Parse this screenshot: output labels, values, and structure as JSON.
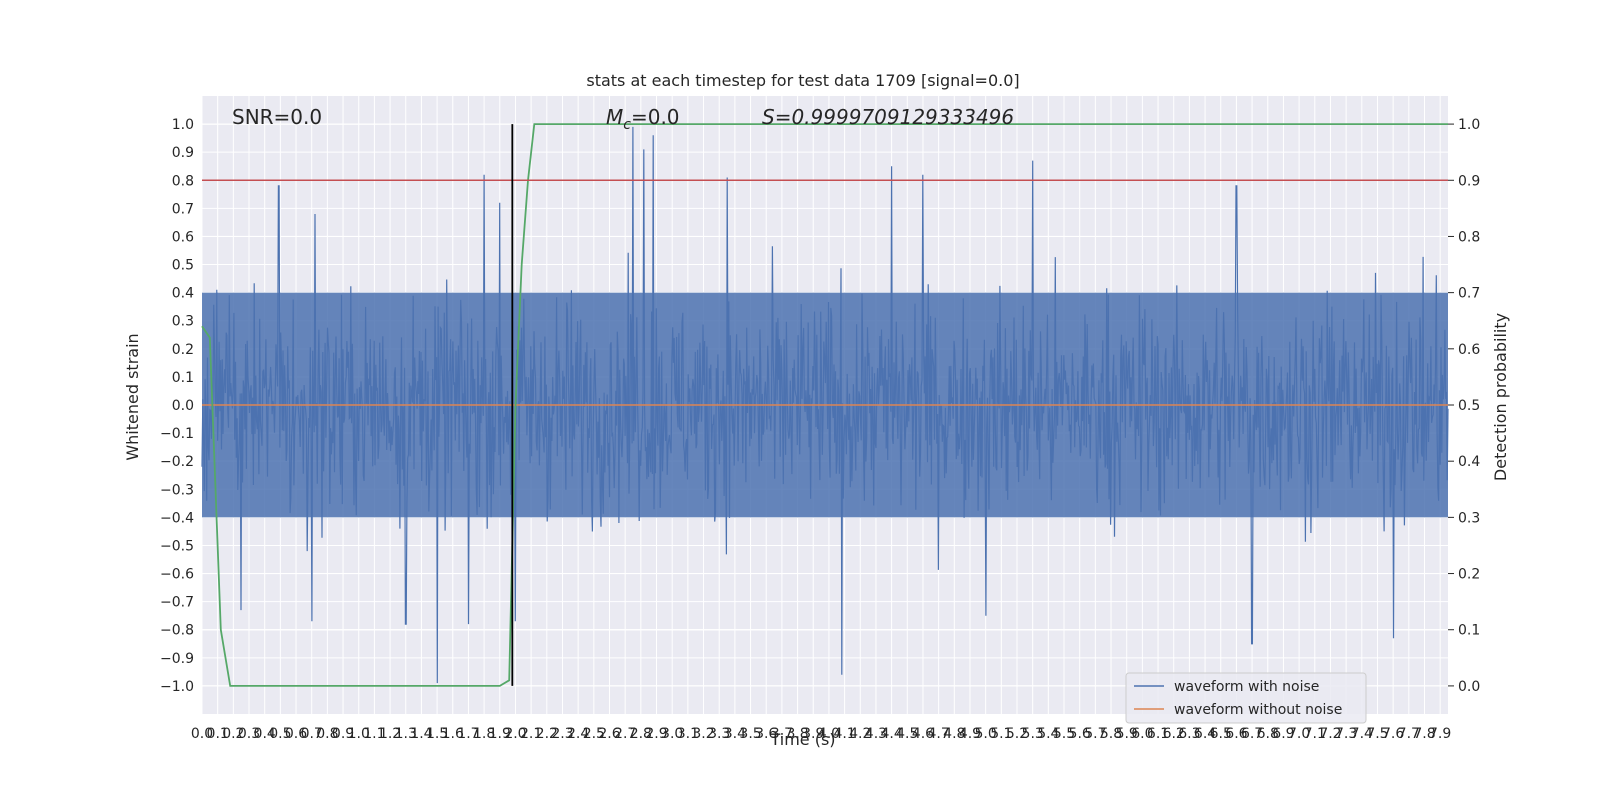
{
  "chart_data": {
    "type": "line",
    "title": "stats at each timestep for test data 1709 [signal=0.0]",
    "xlabel": "Time (s)",
    "ylabel": "Whitened strain",
    "ylabel_right": "Detection probability",
    "xlim": [
      0.0,
      7.95
    ],
    "ylim": [
      -1.1,
      1.1
    ],
    "ylim_right": [
      -0.05,
      1.05
    ],
    "x_ticks": [
      0.0,
      0.1,
      0.2,
      0.3,
      0.4,
      0.5,
      0.6,
      0.7,
      0.8,
      0.9,
      1.0,
      1.1,
      1.2,
      1.3,
      1.4,
      1.5,
      1.6,
      1.7,
      1.8,
      1.9,
      2.0,
      2.1,
      2.2,
      2.3,
      2.4,
      2.5,
      2.6,
      2.7,
      2.8,
      2.9,
      3.0,
      3.1,
      3.2,
      3.3,
      3.4,
      3.5,
      3.6,
      3.7,
      3.8,
      3.9,
      4.0,
      4.1,
      4.2,
      4.3,
      4.4,
      4.5,
      4.6,
      4.7,
      4.8,
      4.9,
      5.0,
      5.1,
      5.2,
      5.3,
      5.4,
      5.5,
      5.6,
      5.7,
      5.8,
      5.9,
      6.0,
      6.1,
      6.2,
      6.3,
      6.4,
      6.5,
      6.6,
      6.7,
      6.8,
      6.9,
      7.0,
      7.1,
      7.2,
      7.3,
      7.4,
      7.5,
      7.6,
      7.7,
      7.8,
      7.9
    ],
    "x_tick_labels": [
      "0.0",
      "0.1",
      "0.2",
      "0.3",
      "0.4",
      "0.5",
      "0.6",
      "0.7",
      "0.8",
      "0.9",
      "1.0",
      "1.1",
      "1.2",
      "1.3",
      "1.4",
      "1.5",
      "1.6",
      "1.7",
      "1.8",
      "1.9",
      "2.0",
      "2.1",
      "2.2",
      "2.3",
      "2.4",
      "2.5",
      "2.6",
      "2.7",
      "2.8",
      "2.9",
      "3.0",
      "3.1",
      "3.2",
      "3.3",
      "3.4",
      "3.5",
      "3.6",
      "3.7",
      "3.8",
      "3.9",
      "4.0",
      "4.1",
      "4.2",
      "4.3",
      "4.4",
      "4.5",
      "4.6",
      "4.7",
      "4.8",
      "4.9",
      "5.0",
      "5.1",
      "5.2",
      "5.3",
      "5.4",
      "5.5",
      "5.6",
      "5.7",
      "5.8",
      "5.9",
      "6.0",
      "6.1",
      "6.2",
      "6.3",
      "6.4",
      "6.5",
      "6.6",
      "6.7",
      "6.8",
      "6.9",
      "7.0",
      "7.1",
      "7.2",
      "7.3",
      "7.4",
      "7.5",
      "7.6",
      "7.7",
      "7.8",
      "7.9"
    ],
    "y_ticks": [
      -1.0,
      -0.9,
      -0.8,
      -0.7,
      -0.6,
      -0.5,
      -0.4,
      -0.3,
      -0.2,
      -0.1,
      0.0,
      0.1,
      0.2,
      0.3,
      0.4,
      0.5,
      0.6,
      0.7,
      0.8,
      0.9,
      1.0
    ],
    "y_tick_labels": [
      "−1.0",
      "−0.9",
      "−0.8",
      "−0.7",
      "−0.6",
      "−0.5",
      "−0.4",
      "−0.3",
      "−0.2",
      "−0.1",
      "0.0",
      "0.1",
      "0.2",
      "0.3",
      "0.4",
      "0.5",
      "0.6",
      "0.7",
      "0.8",
      "0.9",
      "1.0"
    ],
    "y_ticks_right": [
      0.0,
      0.1,
      0.2,
      0.3,
      0.4,
      0.5,
      0.6,
      0.7,
      0.8,
      0.9,
      1.0
    ],
    "y_tick_labels_right": [
      "0.0",
      "0.1",
      "0.2",
      "0.3",
      "0.4",
      "0.5",
      "0.6",
      "0.7",
      "0.8",
      "0.9",
      "1.0"
    ],
    "annotations": {
      "snr": "SNR=0.0",
      "mc_symbol": "M",
      "mc_subscript": "c",
      "mc_value": "=0.0",
      "s": "S=0.9999709129333496"
    },
    "noise_envelope": {
      "description_values": "approximate upper/lower amplitude of noisy waveform",
      "typical_max": 0.4,
      "typical_min": -0.4,
      "peaks_positive": [
        [
          0.49,
          0.78
        ],
        [
          0.72,
          0.68
        ],
        [
          1.8,
          0.82
        ],
        [
          1.9,
          0.72
        ],
        [
          2.75,
          0.99
        ],
        [
          2.82,
          0.91
        ],
        [
          2.88,
          0.96
        ],
        [
          3.35,
          0.81
        ],
        [
          4.4,
          0.85
        ],
        [
          4.6,
          0.82
        ],
        [
          5.3,
          0.87
        ],
        [
          6.6,
          0.78
        ]
      ],
      "peaks_negative": [
        [
          0.25,
          -0.73
        ],
        [
          0.7,
          -0.77
        ],
        [
          1.3,
          -0.78
        ],
        [
          1.5,
          -0.99
        ],
        [
          1.7,
          -0.78
        ],
        [
          2.0,
          -0.77
        ],
        [
          4.08,
          -0.96
        ],
        [
          5.0,
          -0.75
        ],
        [
          6.7,
          -0.85
        ],
        [
          7.6,
          -0.83
        ]
      ]
    },
    "series": [
      {
        "name": "waveform with noise",
        "color": "#4c72b0",
        "axis": "left",
        "kind": "noise"
      },
      {
        "name": "waveform without noise",
        "color": "#dd8452",
        "axis": "left",
        "x": [
          0.0,
          7.95
        ],
        "y": [
          0.0,
          0.0
        ]
      },
      {
        "name": "",
        "color": "#55a868",
        "axis": "right",
        "x": [
          0.0,
          0.05,
          0.12,
          0.18,
          1.5,
          1.9,
          1.96,
          2.0,
          2.04,
          2.08,
          2.12,
          7.95
        ],
        "y": [
          0.64,
          0.62,
          0.1,
          0.0,
          0.0,
          0.0,
          0.01,
          0.5,
          0.75,
          0.9,
          1.0,
          1.0
        ]
      }
    ],
    "threshold_line": {
      "value": 0.9,
      "axis": "right",
      "color": "#c44e52"
    },
    "detection_marker": {
      "x": 1.98,
      "color": "#000000"
    },
    "legend": {
      "placement": "lower-right",
      "entries": [
        "waveform with noise",
        "waveform without noise"
      ]
    },
    "grid": true,
    "background": "#eaeaf2",
    "grid_color": "#ffffff"
  }
}
